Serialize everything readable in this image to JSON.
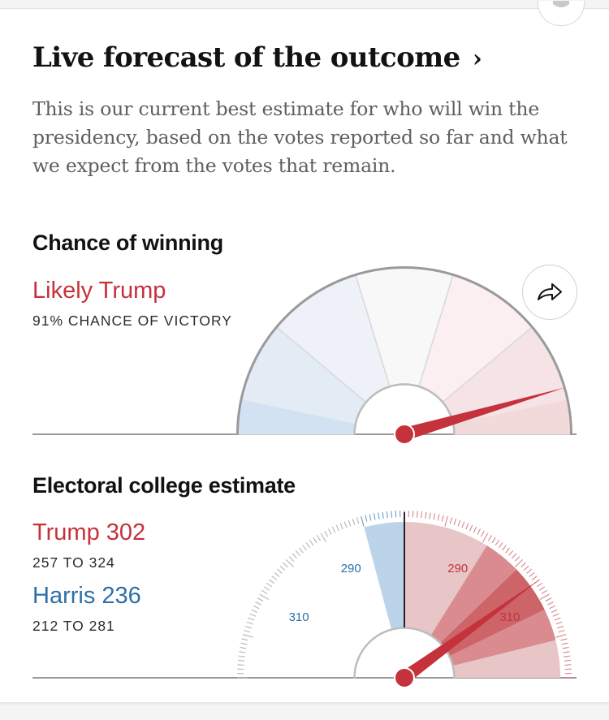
{
  "header": {
    "title": "Live forecast of the outcome",
    "chevron": "›",
    "description": "This is our current best estimate for who will win the presidency, based on the votes reported so far and what we expect from the votes that remain.",
    "top_icon": "bell-icon"
  },
  "chance": {
    "heading": "Chance of winning",
    "leader": "Likely Trump",
    "probability_text": "91% CHANCE OF VICTORY",
    "probability": 0.91,
    "share_icon": "share-arrow-icon"
  },
  "electoral": {
    "heading": "Electoral college estimate",
    "trump": {
      "label": "Trump 302",
      "range": "257 TO 324",
      "value": 302,
      "low": 257,
      "high": 324
    },
    "harris": {
      "label": "Harris 236",
      "range": "212 TO 281",
      "value": 236,
      "low": 212,
      "high": 281
    },
    "tick_labels_blue": [
      "290",
      "310"
    ],
    "tick_labels_red": [
      "290",
      "310"
    ]
  },
  "colors": {
    "republican": "#c5323c",
    "democrat": "#2e6fa8",
    "text": "#121212",
    "muted": "#5f5f5f"
  }
}
